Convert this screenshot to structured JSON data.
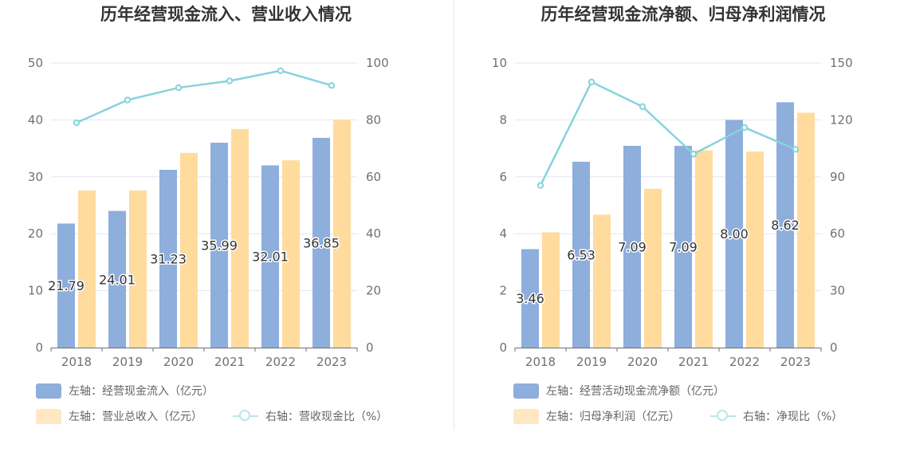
{
  "chart_data": [
    {
      "type": "bar",
      "title": "历年经营现金流入、营业收入情况",
      "categories": [
        "2018",
        "2019",
        "2020",
        "2021",
        "2022",
        "2023"
      ],
      "left_axis": {
        "ylim": [
          0,
          50
        ],
        "ticks": [
          "0",
          "10",
          "20",
          "30",
          "40",
          "50"
        ]
      },
      "right_axis": {
        "ylim": [
          0,
          100
        ],
        "ticks": [
          "0",
          "20",
          "40",
          "60",
          "80",
          "100"
        ]
      },
      "series": [
        {
          "name": "左轴：经营现金流入（亿元）",
          "type": "bar",
          "axis": "left",
          "color": "#8eaedc",
          "values": [
            21.79,
            24.01,
            31.23,
            35.99,
            32.01,
            36.85
          ],
          "labels_shown": true
        },
        {
          "name": "左轴：营业总收入（亿元）",
          "type": "bar",
          "axis": "left",
          "color": "#ffdb9e",
          "values": [
            27.6,
            27.6,
            34.2,
            38.4,
            32.9,
            40.0
          ],
          "labels_shown": false
        },
        {
          "name": "右轴：营收现金比（%）",
          "type": "line",
          "axis": "right",
          "color": "#86d3dc",
          "values": [
            79.0,
            87.0,
            91.3,
            93.7,
            97.3,
            92.1
          ],
          "labels_shown": false
        }
      ],
      "legend_position": "bottom",
      "grid": true
    },
    {
      "type": "bar",
      "title": "历年经营现金流净额、归母净利润情况",
      "categories": [
        "2018",
        "2019",
        "2020",
        "2021",
        "2022",
        "2023"
      ],
      "left_axis": {
        "ylim": [
          0,
          10
        ],
        "ticks": [
          "0",
          "2",
          "4",
          "6",
          "8",
          "10"
        ]
      },
      "right_axis": {
        "ylim": [
          0,
          150
        ],
        "ticks": [
          "0",
          "30",
          "60",
          "90",
          "120",
          "150"
        ]
      },
      "series": [
        {
          "name": "左轴：经营活动现金流净额（亿元）",
          "type": "bar",
          "axis": "left",
          "color": "#8eaedc",
          "values": [
            3.46,
            6.53,
            7.09,
            7.09,
            8.0,
            8.62
          ],
          "labels_shown": true
        },
        {
          "name": "左轴：归母净利润（亿元）",
          "type": "bar",
          "axis": "left",
          "color": "#ffdb9e",
          "values": [
            4.05,
            4.67,
            5.58,
            6.93,
            6.89,
            8.25
          ],
          "labels_shown": false
        },
        {
          "name": "右轴：净现比（%）",
          "type": "line",
          "axis": "right",
          "color": "#86d3dc",
          "values": [
            85.5,
            140.0,
            127.0,
            102.0,
            116.0,
            104.5
          ],
          "labels_shown": false
        }
      ],
      "legend_position": "bottom",
      "grid": true
    }
  ]
}
